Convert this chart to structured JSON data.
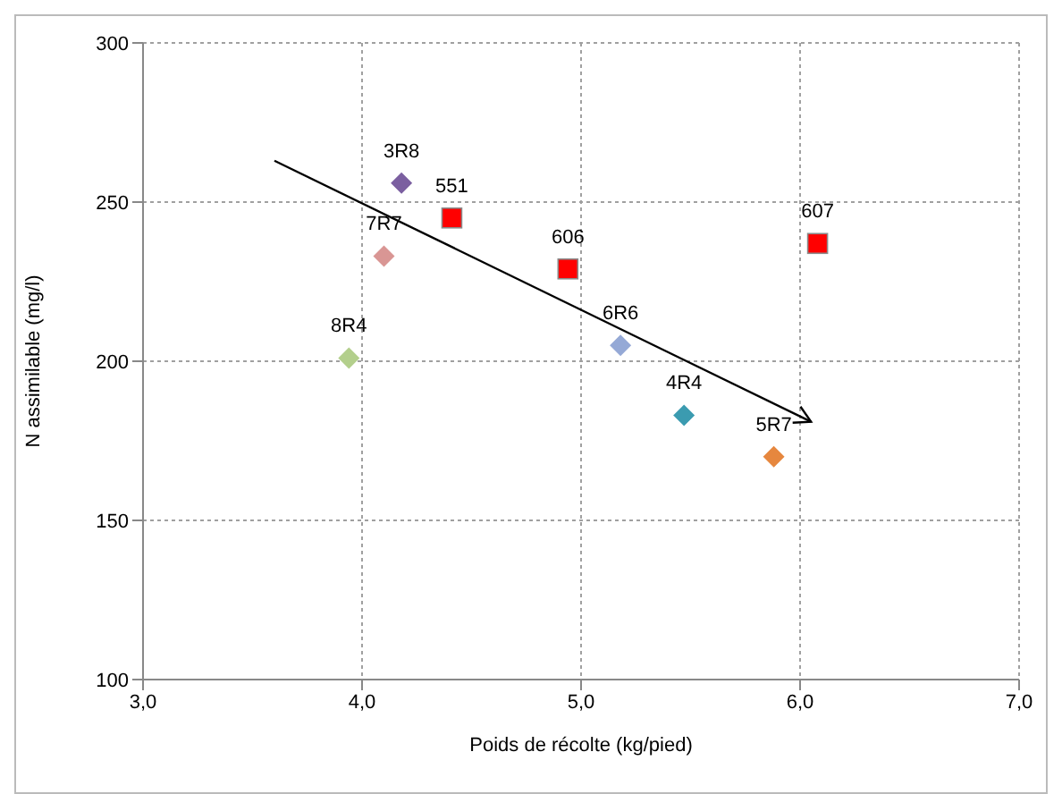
{
  "chart_data": {
    "type": "scatter",
    "xlabel": "Poids de récolte (kg/pied)",
    "ylabel": "N assimilable  (mg/l)",
    "xlim": [
      3,
      7
    ],
    "xticks": [
      {
        "value": 3,
        "label": "3,0"
      },
      {
        "value": 4,
        "label": "4,0"
      },
      {
        "value": 5,
        "label": "5,0"
      },
      {
        "value": 6,
        "label": "6,0"
      },
      {
        "value": 7,
        "label": "7,0"
      }
    ],
    "ylim": [
      100,
      300
    ],
    "yticks": [
      100,
      150,
      200,
      250,
      300
    ],
    "grid": true,
    "legend": false,
    "series": [
      {
        "name": "3R8",
        "color": "#7b5fa0",
        "marker": "diamond",
        "x": [
          4.18
        ],
        "values": [
          256
        ]
      },
      {
        "name": "551",
        "color": "#ff0000",
        "marker": "square",
        "x": [
          4.41
        ],
        "values": [
          245
        ]
      },
      {
        "name": "7R7",
        "color": "#d99694",
        "marker": "diamond",
        "x": [
          4.1
        ],
        "values": [
          233
        ]
      },
      {
        "name": "606",
        "color": "#ff0000",
        "marker": "square",
        "x": [
          4.94
        ],
        "values": [
          229
        ]
      },
      {
        "name": "6R6",
        "color": "#95a9d6",
        "marker": "diamond",
        "x": [
          5.18
        ],
        "values": [
          205
        ]
      },
      {
        "name": "8R4",
        "color": "#b3cf8c",
        "marker": "diamond",
        "x": [
          3.94
        ],
        "values": [
          201
        ]
      },
      {
        "name": "4R4",
        "color": "#3b9bb0",
        "marker": "diamond",
        "x": [
          5.47
        ],
        "values": [
          183
        ]
      },
      {
        "name": "5R7",
        "color": "#e6873e",
        "marker": "diamond",
        "x": [
          5.88
        ],
        "values": [
          170
        ]
      },
      {
        "name": "607",
        "color": "#ff0000",
        "marker": "square",
        "x": [
          6.08
        ],
        "values": [
          237
        ]
      },
      {
        "type": "line",
        "color": "#000000",
        "marker": "none",
        "x": [
          3.6,
          6.05
        ],
        "values": [
          263,
          181
        ]
      }
    ]
  }
}
